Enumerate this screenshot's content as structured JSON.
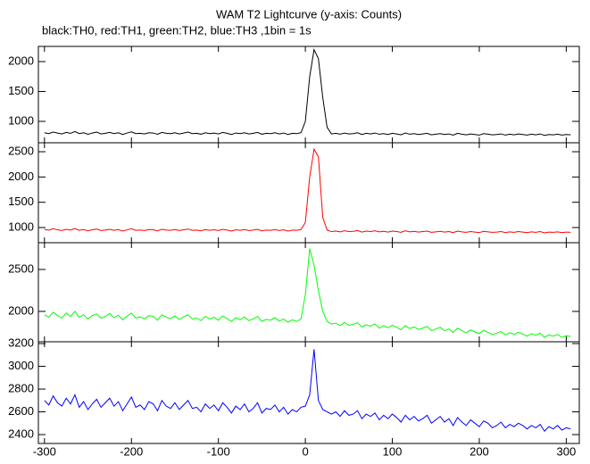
{
  "chart_data": [
    {
      "type": "line",
      "title": "WAM T2 Lightcurve (y-axis: Counts)",
      "subtitle": "black:TH0, red:TH1, green:TH2, blue:TH3 ,1bin = 1s",
      "x": [
        -300,
        -295,
        -290,
        -285,
        -280,
        -275,
        -270,
        -265,
        -260,
        -255,
        -250,
        -245,
        -240,
        -235,
        -230,
        -225,
        -220,
        -215,
        -210,
        -205,
        -200,
        -195,
        -190,
        -185,
        -180,
        -175,
        -170,
        -165,
        -160,
        -155,
        -150,
        -145,
        -140,
        -135,
        -130,
        -125,
        -120,
        -115,
        -110,
        -105,
        -100,
        -95,
        -90,
        -85,
        -80,
        -75,
        -70,
        -65,
        -60,
        -55,
        -50,
        -45,
        -40,
        -35,
        -30,
        -25,
        -20,
        -15,
        -10,
        -5,
        0,
        5,
        10,
        15,
        20,
        25,
        30,
        35,
        40,
        45,
        50,
        55,
        60,
        65,
        70,
        75,
        80,
        85,
        90,
        95,
        100,
        105,
        110,
        115,
        120,
        125,
        130,
        135,
        140,
        145,
        150,
        155,
        160,
        165,
        170,
        175,
        180,
        185,
        190,
        195,
        200,
        205,
        210,
        215,
        220,
        225,
        230,
        235,
        240,
        245,
        250,
        255,
        260,
        265,
        270,
        275,
        280,
        285,
        290,
        295,
        300,
        305
      ],
      "series": [
        {
          "color": "#000000",
          "values": [
            810,
            795,
            820,
            805,
            790,
            815,
            800,
            830,
            795,
            810,
            785,
            805,
            820,
            790,
            800,
            815,
            795,
            810,
            780,
            805,
            825,
            795,
            800,
            790,
            810,
            805,
            785,
            815,
            800,
            795,
            810,
            790,
            805,
            820,
            795,
            800,
            785,
            810,
            795,
            805,
            790,
            815,
            800,
            780,
            805,
            795,
            810,
            790,
            800,
            815,
            785,
            800,
            795,
            810,
            790,
            805,
            780,
            800,
            795,
            810,
            1000,
            1750,
            2200,
            2050,
            1400,
            900,
            790,
            800,
            785,
            805,
            790,
            795,
            810,
            780,
            800,
            790,
            805,
            785,
            795,
            780,
            800,
            790,
            775,
            805,
            785,
            795,
            780,
            790,
            800,
            775,
            785,
            795,
            780,
            790,
            770,
            800,
            785,
            775,
            790,
            780,
            770,
            795,
            785,
            775,
            780,
            790,
            770,
            785,
            775,
            790,
            780,
            770,
            785,
            775,
            790,
            765,
            780,
            775,
            785,
            770,
            780,
            775
          ]
        }
      ],
      "xlim": [
        -307,
        315
      ],
      "ylim": [
        642,
        2254
      ],
      "yticks": [
        1000,
        1500,
        2000
      ]
    },
    {
      "type": "line",
      "x": [
        -300,
        -295,
        -290,
        -285,
        -280,
        -275,
        -270,
        -265,
        -260,
        -255,
        -250,
        -245,
        -240,
        -235,
        -230,
        -225,
        -220,
        -215,
        -210,
        -205,
        -200,
        -195,
        -190,
        -185,
        -180,
        -175,
        -170,
        -165,
        -160,
        -155,
        -150,
        -145,
        -140,
        -135,
        -130,
        -125,
        -120,
        -115,
        -110,
        -105,
        -100,
        -95,
        -90,
        -85,
        -80,
        -75,
        -70,
        -65,
        -60,
        -55,
        -50,
        -45,
        -40,
        -35,
        -30,
        -25,
        -20,
        -15,
        -10,
        -5,
        0,
        5,
        10,
        15,
        20,
        25,
        30,
        35,
        40,
        45,
        50,
        55,
        60,
        65,
        70,
        75,
        80,
        85,
        90,
        95,
        100,
        105,
        110,
        115,
        120,
        125,
        130,
        135,
        140,
        145,
        150,
        155,
        160,
        165,
        170,
        175,
        180,
        185,
        190,
        195,
        200,
        205,
        210,
        215,
        220,
        225,
        230,
        235,
        240,
        245,
        250,
        255,
        260,
        265,
        270,
        275,
        280,
        285,
        290,
        295,
        300,
        305
      ],
      "series": [
        {
          "color": "#ff0000",
          "values": [
            960,
            950,
            975,
            955,
            940,
            965,
            950,
            980,
            945,
            960,
            935,
            955,
            970,
            940,
            950,
            965,
            945,
            960,
            930,
            955,
            975,
            945,
            950,
            940,
            960,
            955,
            935,
            965,
            950,
            945,
            960,
            940,
            955,
            970,
            945,
            950,
            935,
            960,
            945,
            955,
            940,
            965,
            950,
            930,
            955,
            945,
            960,
            940,
            950,
            965,
            935,
            950,
            945,
            960,
            940,
            955,
            930,
            950,
            945,
            960,
            1100,
            2000,
            2550,
            2400,
            1200,
            950,
            920,
            930,
            915,
            935,
            920,
            925,
            940,
            910,
            930,
            920,
            935,
            915,
            925,
            910,
            930,
            920,
            905,
            935,
            915,
            925,
            910,
            920,
            930,
            905,
            915,
            925,
            910,
            920,
            900,
            930,
            915,
            905,
            920,
            910,
            900,
            925,
            915,
            905,
            910,
            920,
            900,
            915,
            905,
            920,
            910,
            900,
            915,
            905,
            920,
            895,
            910,
            905,
            915,
            900,
            910,
            905
          ]
        }
      ],
      "xlim": [
        -307,
        315
      ],
      "ylim": [
        700,
        2677
      ],
      "yticks": [
        1000,
        1500,
        2000,
        2500
      ]
    },
    {
      "type": "line",
      "x": [
        -300,
        -295,
        -290,
        -285,
        -280,
        -275,
        -270,
        -265,
        -260,
        -255,
        -250,
        -245,
        -240,
        -235,
        -230,
        -225,
        -220,
        -215,
        -210,
        -205,
        -200,
        -195,
        -190,
        -185,
        -180,
        -175,
        -170,
        -165,
        -160,
        -155,
        -150,
        -145,
        -140,
        -135,
        -130,
        -125,
        -120,
        -115,
        -110,
        -105,
        -100,
        -95,
        -90,
        -85,
        -80,
        -75,
        -70,
        -65,
        -60,
        -55,
        -50,
        -45,
        -40,
        -35,
        -30,
        -25,
        -20,
        -15,
        -10,
        -5,
        0,
        5,
        10,
        15,
        20,
        25,
        30,
        35,
        40,
        45,
        50,
        55,
        60,
        65,
        70,
        75,
        80,
        85,
        90,
        95,
        100,
        105,
        110,
        115,
        120,
        125,
        130,
        135,
        140,
        145,
        150,
        155,
        160,
        165,
        170,
        175,
        180,
        185,
        190,
        195,
        200,
        205,
        210,
        215,
        220,
        225,
        230,
        235,
        240,
        245,
        250,
        255,
        260,
        265,
        270,
        275,
        280,
        285,
        290,
        295,
        300,
        305
      ],
      "series": [
        {
          "color": "#00ff00",
          "values": [
            1960,
            1930,
            1990,
            1950,
            1920,
            1980,
            1940,
            2000,
            1930,
            1960,
            1910,
            1950,
            1970,
            1920,
            1940,
            1975,
            1925,
            1955,
            1900,
            1945,
            1980,
            1920,
            1935,
            1910,
            1950,
            1940,
            1895,
            1960,
            1930,
            1915,
            1945,
            1905,
            1935,
            1960,
            1910,
            1920,
            1890,
            1940,
            1910,
            1930,
            1895,
            1945,
            1915,
            1880,
            1925,
            1900,
            1935,
            1890,
            1910,
            1940,
            1880,
            1905,
            1895,
            1925,
            1885,
            1910,
            1870,
            1900,
            1880,
            1910,
            2200,
            2750,
            2550,
            2250,
            2000,
            1880,
            1850,
            1860,
            1830,
            1870,
            1835,
            1845,
            1865,
            1815,
            1840,
            1825,
            1850,
            1800,
            1830,
            1805,
            1835,
            1810,
            1780,
            1830,
            1795,
            1815,
            1785,
            1800,
            1820,
            1770,
            1790,
            1810,
            1770,
            1790,
            1750,
            1800,
            1770,
            1745,
            1780,
            1755,
            1735,
            1775,
            1750,
            1725,
            1740,
            1760,
            1720,
            1745,
            1725,
            1750,
            1730,
            1705,
            1735,
            1715,
            1740,
            1690,
            1720,
            1705,
            1725,
            1690,
            1710,
            1700
          ]
        }
      ],
      "xlim": [
        -307,
        315
      ],
      "ylim": [
        1638,
        2819
      ],
      "yticks": [
        2000,
        2500
      ]
    },
    {
      "type": "line",
      "x": [
        -300,
        -295,
        -290,
        -285,
        -280,
        -275,
        -270,
        -265,
        -260,
        -255,
        -250,
        -245,
        -240,
        -235,
        -230,
        -225,
        -220,
        -215,
        -210,
        -205,
        -200,
        -195,
        -190,
        -185,
        -180,
        -175,
        -170,
        -165,
        -160,
        -155,
        -150,
        -145,
        -140,
        -135,
        -130,
        -125,
        -120,
        -115,
        -110,
        -105,
        -100,
        -95,
        -90,
        -85,
        -80,
        -75,
        -70,
        -65,
        -60,
        -55,
        -50,
        -45,
        -40,
        -35,
        -30,
        -25,
        -20,
        -15,
        -10,
        -5,
        0,
        5,
        10,
        15,
        20,
        25,
        30,
        35,
        40,
        45,
        50,
        55,
        60,
        65,
        70,
        75,
        80,
        85,
        90,
        95,
        100,
        105,
        110,
        115,
        120,
        125,
        130,
        135,
        140,
        145,
        150,
        155,
        160,
        165,
        170,
        175,
        180,
        185,
        190,
        195,
        200,
        205,
        210,
        215,
        220,
        225,
        230,
        235,
        240,
        245,
        250,
        255,
        260,
        265,
        270,
        275,
        280,
        285,
        290,
        295,
        300,
        305
      ],
      "series": [
        {
          "color": "#0000ff",
          "values": [
            2700,
            2660,
            2740,
            2680,
            2650,
            2720,
            2670,
            2750,
            2640,
            2690,
            2620,
            2670,
            2710,
            2640,
            2680,
            2720,
            2650,
            2690,
            2610,
            2670,
            2730,
            2640,
            2660,
            2620,
            2690,
            2670,
            2610,
            2700,
            2650,
            2630,
            2680,
            2620,
            2660,
            2700,
            2630,
            2640,
            2600,
            2670,
            2630,
            2660,
            2610,
            2680,
            2640,
            2590,
            2650,
            2620,
            2670,
            2600,
            2630,
            2680,
            2590,
            2630,
            2620,
            2660,
            2600,
            2640,
            2580,
            2620,
            2600,
            2640,
            2650,
            2750,
            3150,
            2700,
            2620,
            2600,
            2580,
            2600,
            2560,
            2610,
            2570,
            2580,
            2610,
            2540,
            2580,
            2560,
            2590,
            2530,
            2570,
            2540,
            2580,
            2550,
            2510,
            2570,
            2530,
            2560,
            2520,
            2540,
            2570,
            2500,
            2530,
            2560,
            2510,
            2540,
            2480,
            2550,
            2510,
            2480,
            2530,
            2500,
            2470,
            2520,
            2500,
            2460,
            2480,
            2510,
            2460,
            2490,
            2470,
            2500,
            2480,
            2450,
            2480,
            2460,
            2490,
            2430,
            2470,
            2450,
            2480,
            2440,
            2460,
            2450
          ]
        }
      ],
      "xlim": [
        -307,
        315
      ],
      "ylim": [
        2322,
        3216
      ],
      "yticks": [
        2400,
        2600,
        2800,
        3000,
        3200
      ],
      "xticks": [
        -300,
        -200,
        -100,
        0,
        100,
        200,
        300
      ]
    }
  ]
}
